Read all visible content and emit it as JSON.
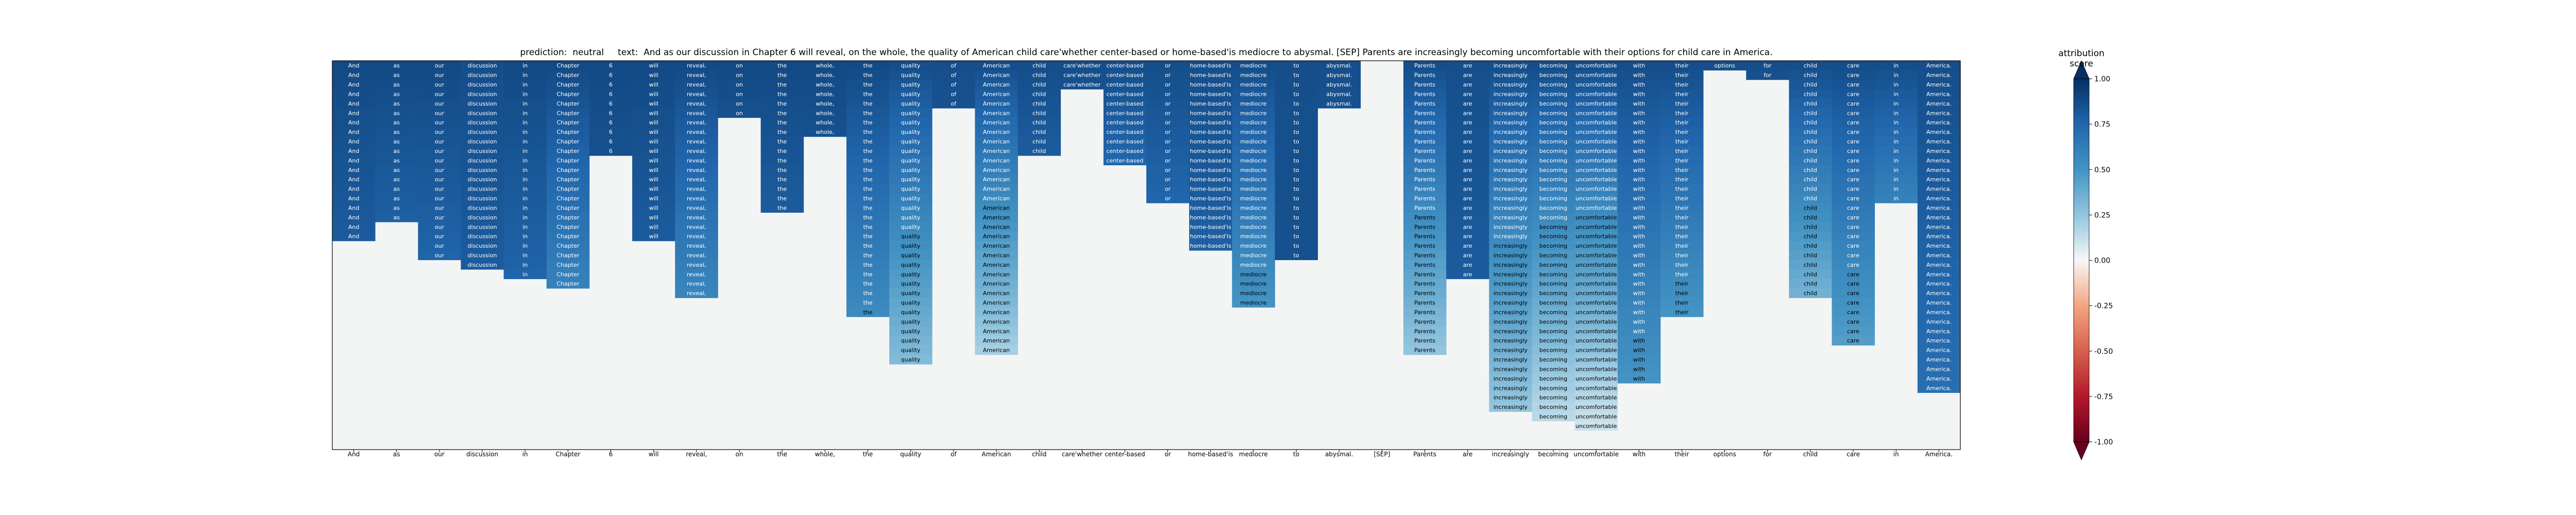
{
  "chart_data": {
    "type": "heatmap",
    "title": "prediction:  neutral     text:  And as our discussion in Chapter 6 will reveal, on the whole, the quality of American child care'whether center-based or home-based'is mediocre to abysmal. [SEP] Parents are increasingly becoming uncomfortable with their options for child care in America.",
    "tokens": [
      "And",
      "as",
      "our",
      "discussion",
      "in",
      "Chapter",
      "6",
      "will",
      "reveal,",
      "on",
      "the",
      "whole,",
      "the",
      "quality",
      "of",
      "American",
      "child",
      "care'whether",
      "center-based",
      "or",
      "home-based'is",
      "mediocre",
      "to",
      "abysmal.",
      "[SEP]",
      "Parents",
      "are",
      "increasingly",
      "becoming",
      "uncomfortable",
      "with",
      "their",
      "options",
      "for",
      "child",
      "care",
      "in",
      "America."
    ],
    "column_depths": [
      19,
      17,
      21,
      22,
      23,
      24,
      10,
      19,
      25,
      6,
      16,
      8,
      27,
      32,
      5,
      31,
      10,
      3,
      11,
      15,
      20,
      26,
      21,
      5,
      0,
      31,
      23,
      37,
      38,
      39,
      34,
      27,
      1,
      2,
      25,
      30,
      15,
      35
    ],
    "column_top_values": [
      0.88,
      0.88,
      0.88,
      0.86,
      0.88,
      0.88,
      0.88,
      0.88,
      0.88,
      0.88,
      0.88,
      0.88,
      0.88,
      0.86,
      0.86,
      0.86,
      0.86,
      0.86,
      0.86,
      0.86,
      0.86,
      0.86,
      0.86,
      0.86,
      0,
      0.86,
      0.86,
      0.86,
      0.86,
      0.86,
      0.86,
      0.86,
      0.86,
      0.86,
      0.86,
      0.86,
      0.86,
      0.86
    ],
    "column_bottom_values": [
      0.8,
      0.78,
      0.76,
      0.8,
      0.76,
      0.6,
      0.85,
      0.8,
      0.58,
      0.85,
      0.8,
      0.85,
      0.55,
      0.3,
      0.85,
      0.2,
      0.8,
      0.85,
      0.75,
      0.75,
      0.78,
      0.5,
      0.85,
      0.85,
      0,
      0.25,
      0.8,
      0.25,
      0.15,
      0.1,
      0.5,
      0.5,
      0.85,
      0.85,
      0.35,
      0.45,
      0.6,
      0.7
    ],
    "colorbar": {
      "label": "attribution score",
      "range": [
        -1,
        1
      ],
      "ticks": [
        "-1.00",
        "-0.75",
        "-0.50",
        "-0.25",
        "0.00",
        "0.25",
        "0.50",
        "0.75",
        "1.00"
      ]
    },
    "background_value": 0.02,
    "colormap": "RdBu",
    "grid": false
  }
}
